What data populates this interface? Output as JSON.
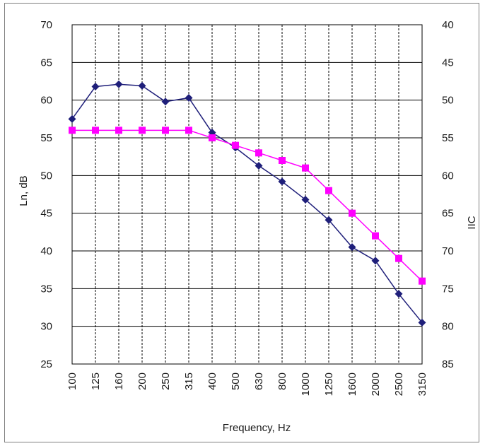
{
  "chart_data": {
    "type": "line",
    "title": "",
    "xlabel": "Frequency, Hz",
    "ylabel": "Ln, dB",
    "y2label": "IIC",
    "categories": [
      "100",
      "125",
      "160",
      "200",
      "250",
      "315",
      "400",
      "500",
      "630",
      "800",
      "1000",
      "1250",
      "1600",
      "2000",
      "2500",
      "3150"
    ],
    "ylim": [
      25,
      70
    ],
    "yticks": [
      70,
      65,
      60,
      55,
      50,
      45,
      40,
      35,
      30,
      25
    ],
    "y2lim": [
      85,
      40
    ],
    "y2ticks": [
      40,
      45,
      50,
      55,
      60,
      65,
      70,
      75,
      80,
      85
    ],
    "grid": true,
    "legend": "none",
    "series": [
      {
        "color": "#1f1f7a",
        "marker": "diamond",
        "values": [
          57.5,
          61.8,
          62.1,
          61.9,
          59.8,
          60.3,
          55.7,
          53.7,
          51.3,
          49.2,
          46.8,
          44.1,
          40.5,
          38.7,
          34.3,
          30.5
        ]
      },
      {
        "color": "#ff00ff",
        "marker": "square",
        "values": [
          56,
          56,
          56,
          56,
          56,
          56,
          55,
          54,
          53,
          52,
          51,
          48,
          45,
          42,
          39,
          36
        ]
      }
    ]
  }
}
